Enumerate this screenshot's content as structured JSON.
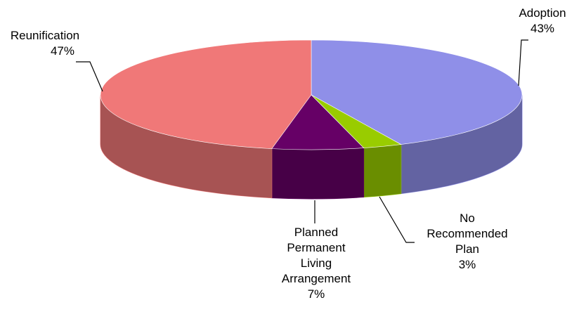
{
  "chart_data": {
    "type": "pie3d",
    "categories": [
      "Adoption",
      "No Recommended Plan",
      "Planned Permanent Living Arrangement",
      "Reunification"
    ],
    "values": [
      43,
      3,
      7,
      47
    ],
    "value_labels": [
      "43%",
      "3%",
      "7%",
      "47%"
    ],
    "colors": [
      "#8f8fe8",
      "#99cc00",
      "#660066",
      "#f07878"
    ]
  }
}
